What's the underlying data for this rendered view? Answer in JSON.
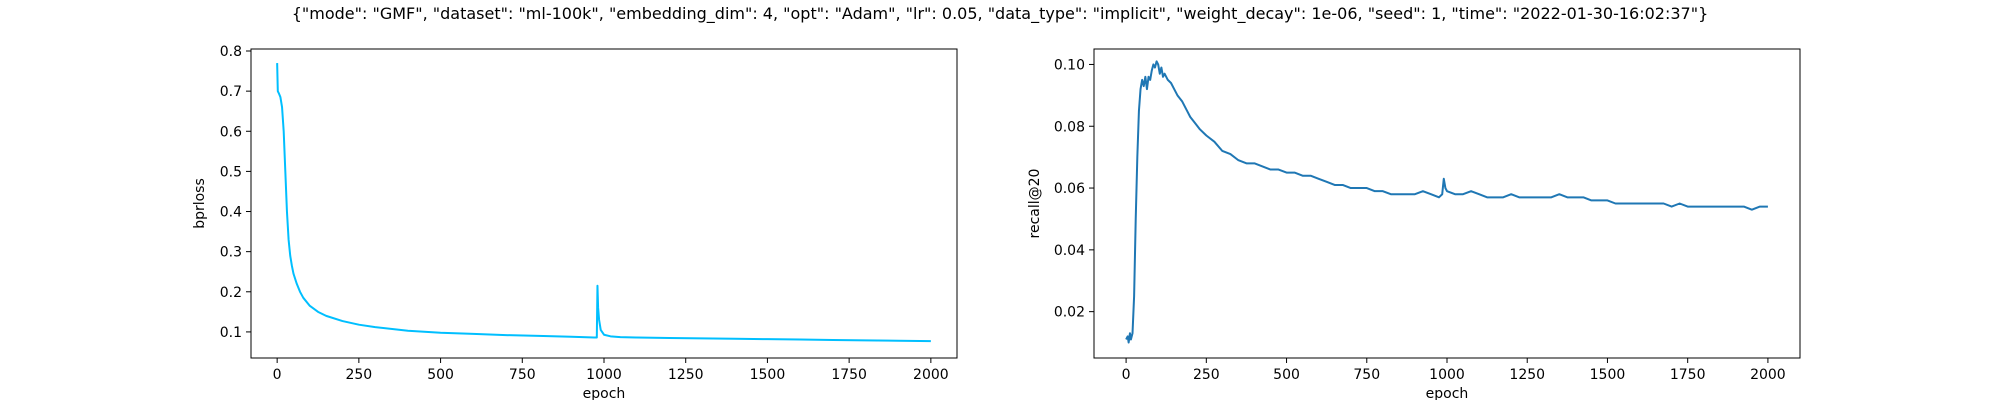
{
  "figure": {
    "suptitle": "{\"mode\": \"GMF\", \"dataset\": \"ml-100k\", \"embedding_dim\": 4, \"opt\": \"Adam\", \"lr\": 0.05, \"data_type\": \"implicit\", \"weight_decay\": 1e-06, \"seed\": 1, \"time\": \"2022-01-30-16:02:37\"}"
  },
  "chart_data": [
    {
      "type": "line",
      "title": "",
      "xlabel": "epoch",
      "ylabel": "bprloss",
      "xlim": [
        -80,
        2080
      ],
      "ylim": [
        0.035,
        0.805
      ],
      "xticks": [
        0,
        250,
        500,
        750,
        1000,
        1250,
        1500,
        1750,
        2000
      ],
      "xtick_labels": [
        "0",
        "250",
        "500",
        "750",
        "1000",
        "1250",
        "1500",
        "1750",
        "2000"
      ],
      "yticks": [
        0.1,
        0.2,
        0.3,
        0.4,
        0.5,
        0.6,
        0.7,
        0.8
      ],
      "ytick_labels": [
        "0.1",
        "0.2",
        "0.3",
        "0.4",
        "0.5",
        "0.6",
        "0.7",
        "0.8"
      ],
      "grid": false,
      "color": "#00bfff",
      "series": [
        {
          "x": [
            0,
            2,
            5,
            10,
            15,
            20,
            25,
            30,
            35,
            40,
            45,
            50,
            60,
            70,
            80,
            100,
            125,
            150,
            200,
            250,
            300,
            400,
            500,
            600,
            700,
            800,
            900,
            970,
            978,
            980,
            982,
            985,
            990,
            1000,
            1020,
            1050,
            1100,
            1200,
            1300,
            1400,
            1500,
            1600,
            1700,
            1800,
            1900,
            2000
          ],
          "y": [
            0.77,
            0.7,
            0.695,
            0.685,
            0.66,
            0.6,
            0.5,
            0.4,
            0.33,
            0.29,
            0.265,
            0.245,
            0.22,
            0.2,
            0.185,
            0.165,
            0.15,
            0.14,
            0.127,
            0.118,
            0.112,
            0.103,
            0.098,
            0.095,
            0.092,
            0.09,
            0.088,
            0.086,
            0.086,
            0.215,
            0.16,
            0.13,
            0.105,
            0.093,
            0.089,
            0.087,
            0.086,
            0.085,
            0.084,
            0.083,
            0.082,
            0.081,
            0.08,
            0.079,
            0.078,
            0.077
          ]
        }
      ]
    },
    {
      "type": "line",
      "title": "",
      "xlabel": "epoch",
      "ylabel": "recall@20",
      "xlim": [
        -100,
        2100
      ],
      "ylim": [
        0.005,
        0.105
      ],
      "xticks": [
        0,
        250,
        500,
        750,
        1000,
        1250,
        1500,
        1750,
        2000
      ],
      "xtick_labels": [
        "0",
        "250",
        "500",
        "750",
        "1000",
        "1250",
        "1500",
        "1750",
        "2000"
      ],
      "yticks": [
        0.02,
        0.04,
        0.06,
        0.08,
        0.1
      ],
      "ytick_labels": [
        "0.02",
        "0.04",
        "0.06",
        "0.08",
        "0.10"
      ],
      "grid": false,
      "color": "#1f77b4",
      "series": [
        {
          "x": [
            0,
            5,
            8,
            12,
            15,
            20,
            25,
            30,
            35,
            40,
            45,
            50,
            55,
            60,
            65,
            70,
            75,
            80,
            85,
            90,
            95,
            100,
            105,
            110,
            115,
            120,
            130,
            140,
            150,
            160,
            175,
            190,
            200,
            215,
            230,
            250,
            275,
            300,
            325,
            350,
            375,
            400,
            425,
            450,
            475,
            500,
            525,
            550,
            575,
            600,
            625,
            650,
            675,
            700,
            725,
            750,
            775,
            800,
            825,
            850,
            875,
            900,
            925,
            950,
            975,
            985,
            990,
            995,
            1000,
            1025,
            1050,
            1075,
            1100,
            1125,
            1150,
            1175,
            1200,
            1225,
            1250,
            1275,
            1300,
            1325,
            1350,
            1375,
            1400,
            1425,
            1450,
            1475,
            1500,
            1525,
            1550,
            1575,
            1600,
            1625,
            1650,
            1675,
            1700,
            1725,
            1750,
            1775,
            1800,
            1825,
            1850,
            1875,
            1900,
            1925,
            1950,
            1975,
            2000
          ],
          "y": [
            0.011,
            0.012,
            0.01,
            0.013,
            0.011,
            0.013,
            0.025,
            0.05,
            0.07,
            0.085,
            0.092,
            0.095,
            0.093,
            0.096,
            0.092,
            0.096,
            0.095,
            0.098,
            0.1,
            0.099,
            0.101,
            0.1,
            0.097,
            0.099,
            0.096,
            0.097,
            0.095,
            0.094,
            0.092,
            0.09,
            0.088,
            0.085,
            0.083,
            0.081,
            0.079,
            0.077,
            0.075,
            0.072,
            0.071,
            0.069,
            0.068,
            0.068,
            0.067,
            0.066,
            0.066,
            0.065,
            0.065,
            0.064,
            0.064,
            0.063,
            0.062,
            0.061,
            0.061,
            0.06,
            0.06,
            0.06,
            0.059,
            0.059,
            0.058,
            0.058,
            0.058,
            0.058,
            0.059,
            0.058,
            0.057,
            0.058,
            0.063,
            0.06,
            0.059,
            0.058,
            0.058,
            0.059,
            0.058,
            0.057,
            0.057,
            0.057,
            0.058,
            0.057,
            0.057,
            0.057,
            0.057,
            0.057,
            0.058,
            0.057,
            0.057,
            0.057,
            0.056,
            0.056,
            0.056,
            0.055,
            0.055,
            0.055,
            0.055,
            0.055,
            0.055,
            0.055,
            0.054,
            0.055,
            0.054,
            0.054,
            0.054,
            0.054,
            0.054,
            0.054,
            0.054,
            0.054,
            0.053,
            0.054,
            0.054
          ]
        }
      ]
    }
  ]
}
